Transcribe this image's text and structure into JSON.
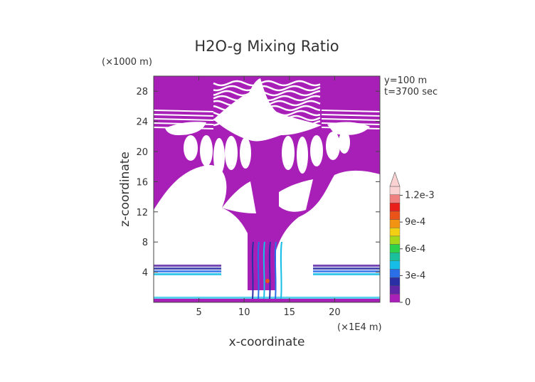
{
  "chart_data": {
    "type": "heatmap",
    "title": "H2O-g Mixing Ratio",
    "xlabel": "x-coordinate",
    "ylabel": "z-coordinate",
    "x_unit": "(×1E4 m)",
    "y_unit": "(×1000 m)",
    "x_ticks": [
      "5",
      "10",
      "15",
      "20"
    ],
    "x_tick_values": [
      5,
      10,
      15,
      20
    ],
    "y_ticks": [
      "4",
      "8",
      "12",
      "16",
      "20",
      "24",
      "28"
    ],
    "y_tick_values": [
      4,
      8,
      12,
      16,
      20,
      24,
      28
    ],
    "xlim": [
      0,
      25
    ],
    "ylim": [
      0,
      30
    ],
    "annotations": [
      "y=100 m",
      "t=3700 sec"
    ],
    "colorbar": {
      "labels": [
        "1.2e-3",
        "9e-4",
        "6e-4",
        "3e-4",
        "0"
      ],
      "label_values": [
        0.0012,
        0.0009,
        0.0006,
        0.0003,
        0
      ],
      "levels": [
        0,
        0.0001,
        0.0002,
        0.0003,
        0.0004,
        0.0005,
        0.0006,
        0.0007,
        0.0008,
        0.0009,
        0.001,
        0.0011,
        0.0012,
        0.0013
      ],
      "colors": [
        "#a820b8",
        "#5f27a8",
        "#2a2fa6",
        "#2a6ee8",
        "#16bde6",
        "#1abf9c",
        "#2cd24a",
        "#a6d81a",
        "#f2cf12",
        "#f39312",
        "#ea5418",
        "#e81f1a",
        "#f07f7f",
        "#fad2d2"
      ],
      "extend": "max"
    },
    "colors": {
      "background_field": "#a81fb8",
      "zero_region": "#ffffff"
    }
  }
}
